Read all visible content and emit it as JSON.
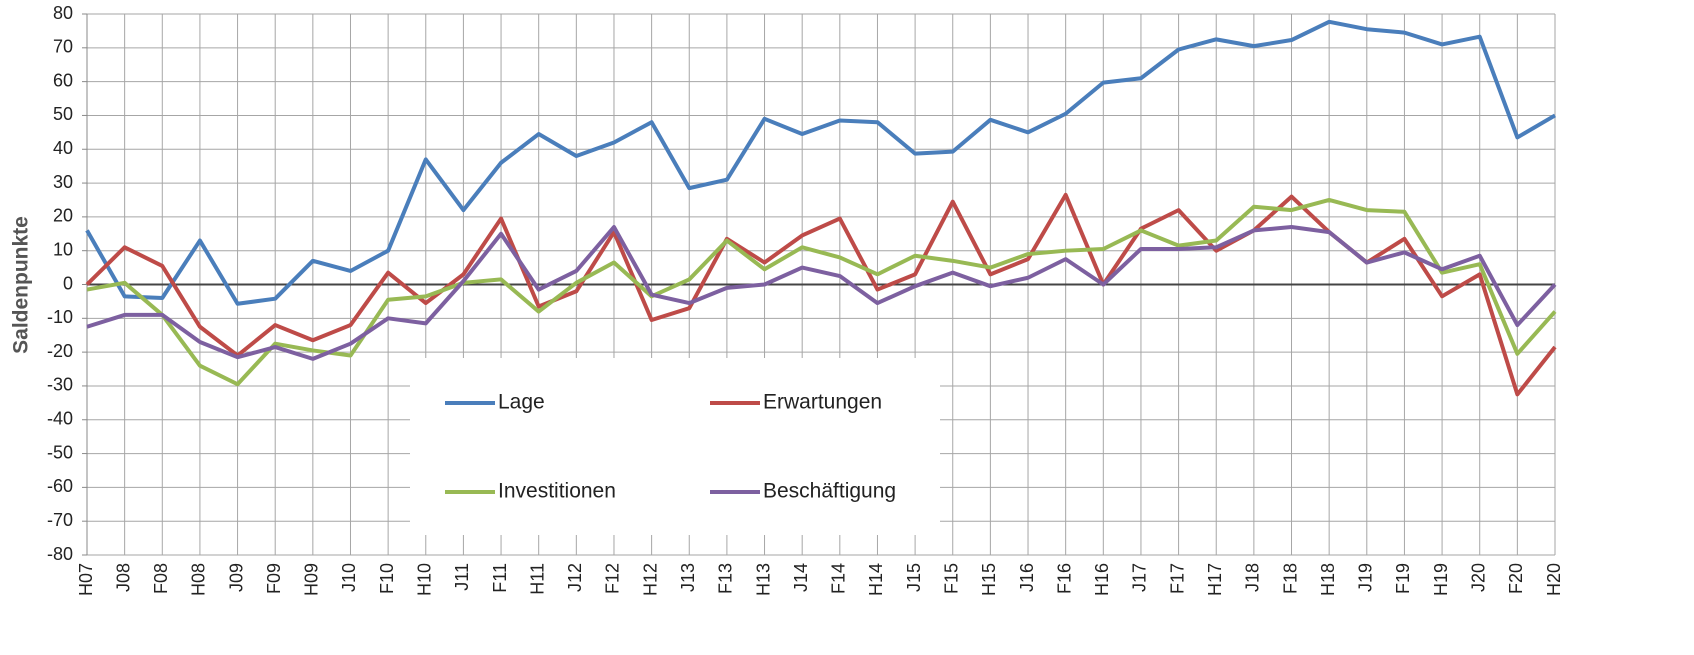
{
  "chart_data": {
    "type": "line",
    "y_label": "Saldenpunkte",
    "categories": [
      "H07",
      "J08",
      "F08",
      "H08",
      "J09",
      "F09",
      "H09",
      "J10",
      "F10",
      "H10",
      "J11",
      "F11",
      "H11",
      "J12",
      "F12",
      "H12",
      "J13",
      "F13",
      "H13",
      "J14",
      "F14",
      "H14",
      "J15",
      "F15",
      "H15",
      "J16",
      "F16",
      "H16",
      "J17",
      "F17",
      "H17",
      "J18",
      "F18",
      "H18",
      "J19",
      "F19",
      "H19",
      "J20",
      "F20",
      "H20"
    ],
    "series": [
      {
        "name": "Lage",
        "color": "#4a7ebb",
        "values": [
          16,
          -3.5,
          -4,
          13,
          -5.7,
          -4.2,
          7,
          4,
          10,
          37,
          22,
          36,
          44.5,
          38,
          42,
          48,
          28.5,
          31,
          49,
          44.5,
          48.5,
          48,
          38.7,
          39.3,
          48.7,
          45,
          50.5,
          59.7,
          61,
          69.5,
          72.5,
          70.5,
          72.3,
          77.7,
          75.5,
          74.5,
          71,
          73.3,
          43.5,
          50
        ]
      },
      {
        "name": "Erwartungen",
        "color": "#be4b48",
        "values": [
          0,
          11,
          5.5,
          -12.5,
          -21,
          -12,
          -16.5,
          -12,
          3.5,
          -5.5,
          3,
          19.5,
          -6.5,
          -2,
          15.5,
          -10.5,
          -7,
          13.5,
          6.5,
          14.5,
          19.5,
          -1.5,
          3,
          24.5,
          3,
          7.5,
          26.5,
          0,
          16.5,
          22,
          10,
          16,
          26,
          15.5,
          6.5,
          13.5,
          -3.5,
          3,
          -32.5,
          -18.5
        ]
      },
      {
        "name": "Investitionen",
        "color": "#98b954",
        "values": [
          -1.5,
          0.5,
          -9,
          -24,
          -29.5,
          -17.5,
          -19.5,
          -21,
          -4.5,
          -3.5,
          0.5,
          1.5,
          -8,
          0.5,
          6.5,
          -3.5,
          1.5,
          13,
          4.5,
          11,
          8,
          3,
          8.5,
          7,
          5,
          9,
          10,
          10.5,
          16,
          11.5,
          13,
          23,
          22,
          25,
          22,
          21.5,
          3.5,
          6,
          -20.5,
          -8
        ]
      },
      {
        "name": "Beschäftigung",
        "color": "#7d60a0",
        "values": [
          -12.5,
          -9,
          -9,
          -17,
          -21.5,
          -18.5,
          -22,
          -17.5,
          -10,
          -11.5,
          1,
          15,
          -1.5,
          4,
          17,
          -3,
          -5.5,
          -1,
          0,
          5,
          2.5,
          -5.5,
          -0.5,
          3.5,
          -0.5,
          2,
          7.5,
          0,
          10.5,
          10.5,
          11,
          16,
          17,
          15.5,
          6.5,
          9.5,
          4.5,
          8.5,
          -12,
          0
        ]
      }
    ],
    "ylim": [
      -80,
      80
    ],
    "yticks": [
      -80,
      -70,
      -60,
      -50,
      -40,
      -30,
      -20,
      -10,
      0,
      10,
      20,
      30,
      40,
      50,
      60,
      70,
      80
    ],
    "grid": true
  }
}
